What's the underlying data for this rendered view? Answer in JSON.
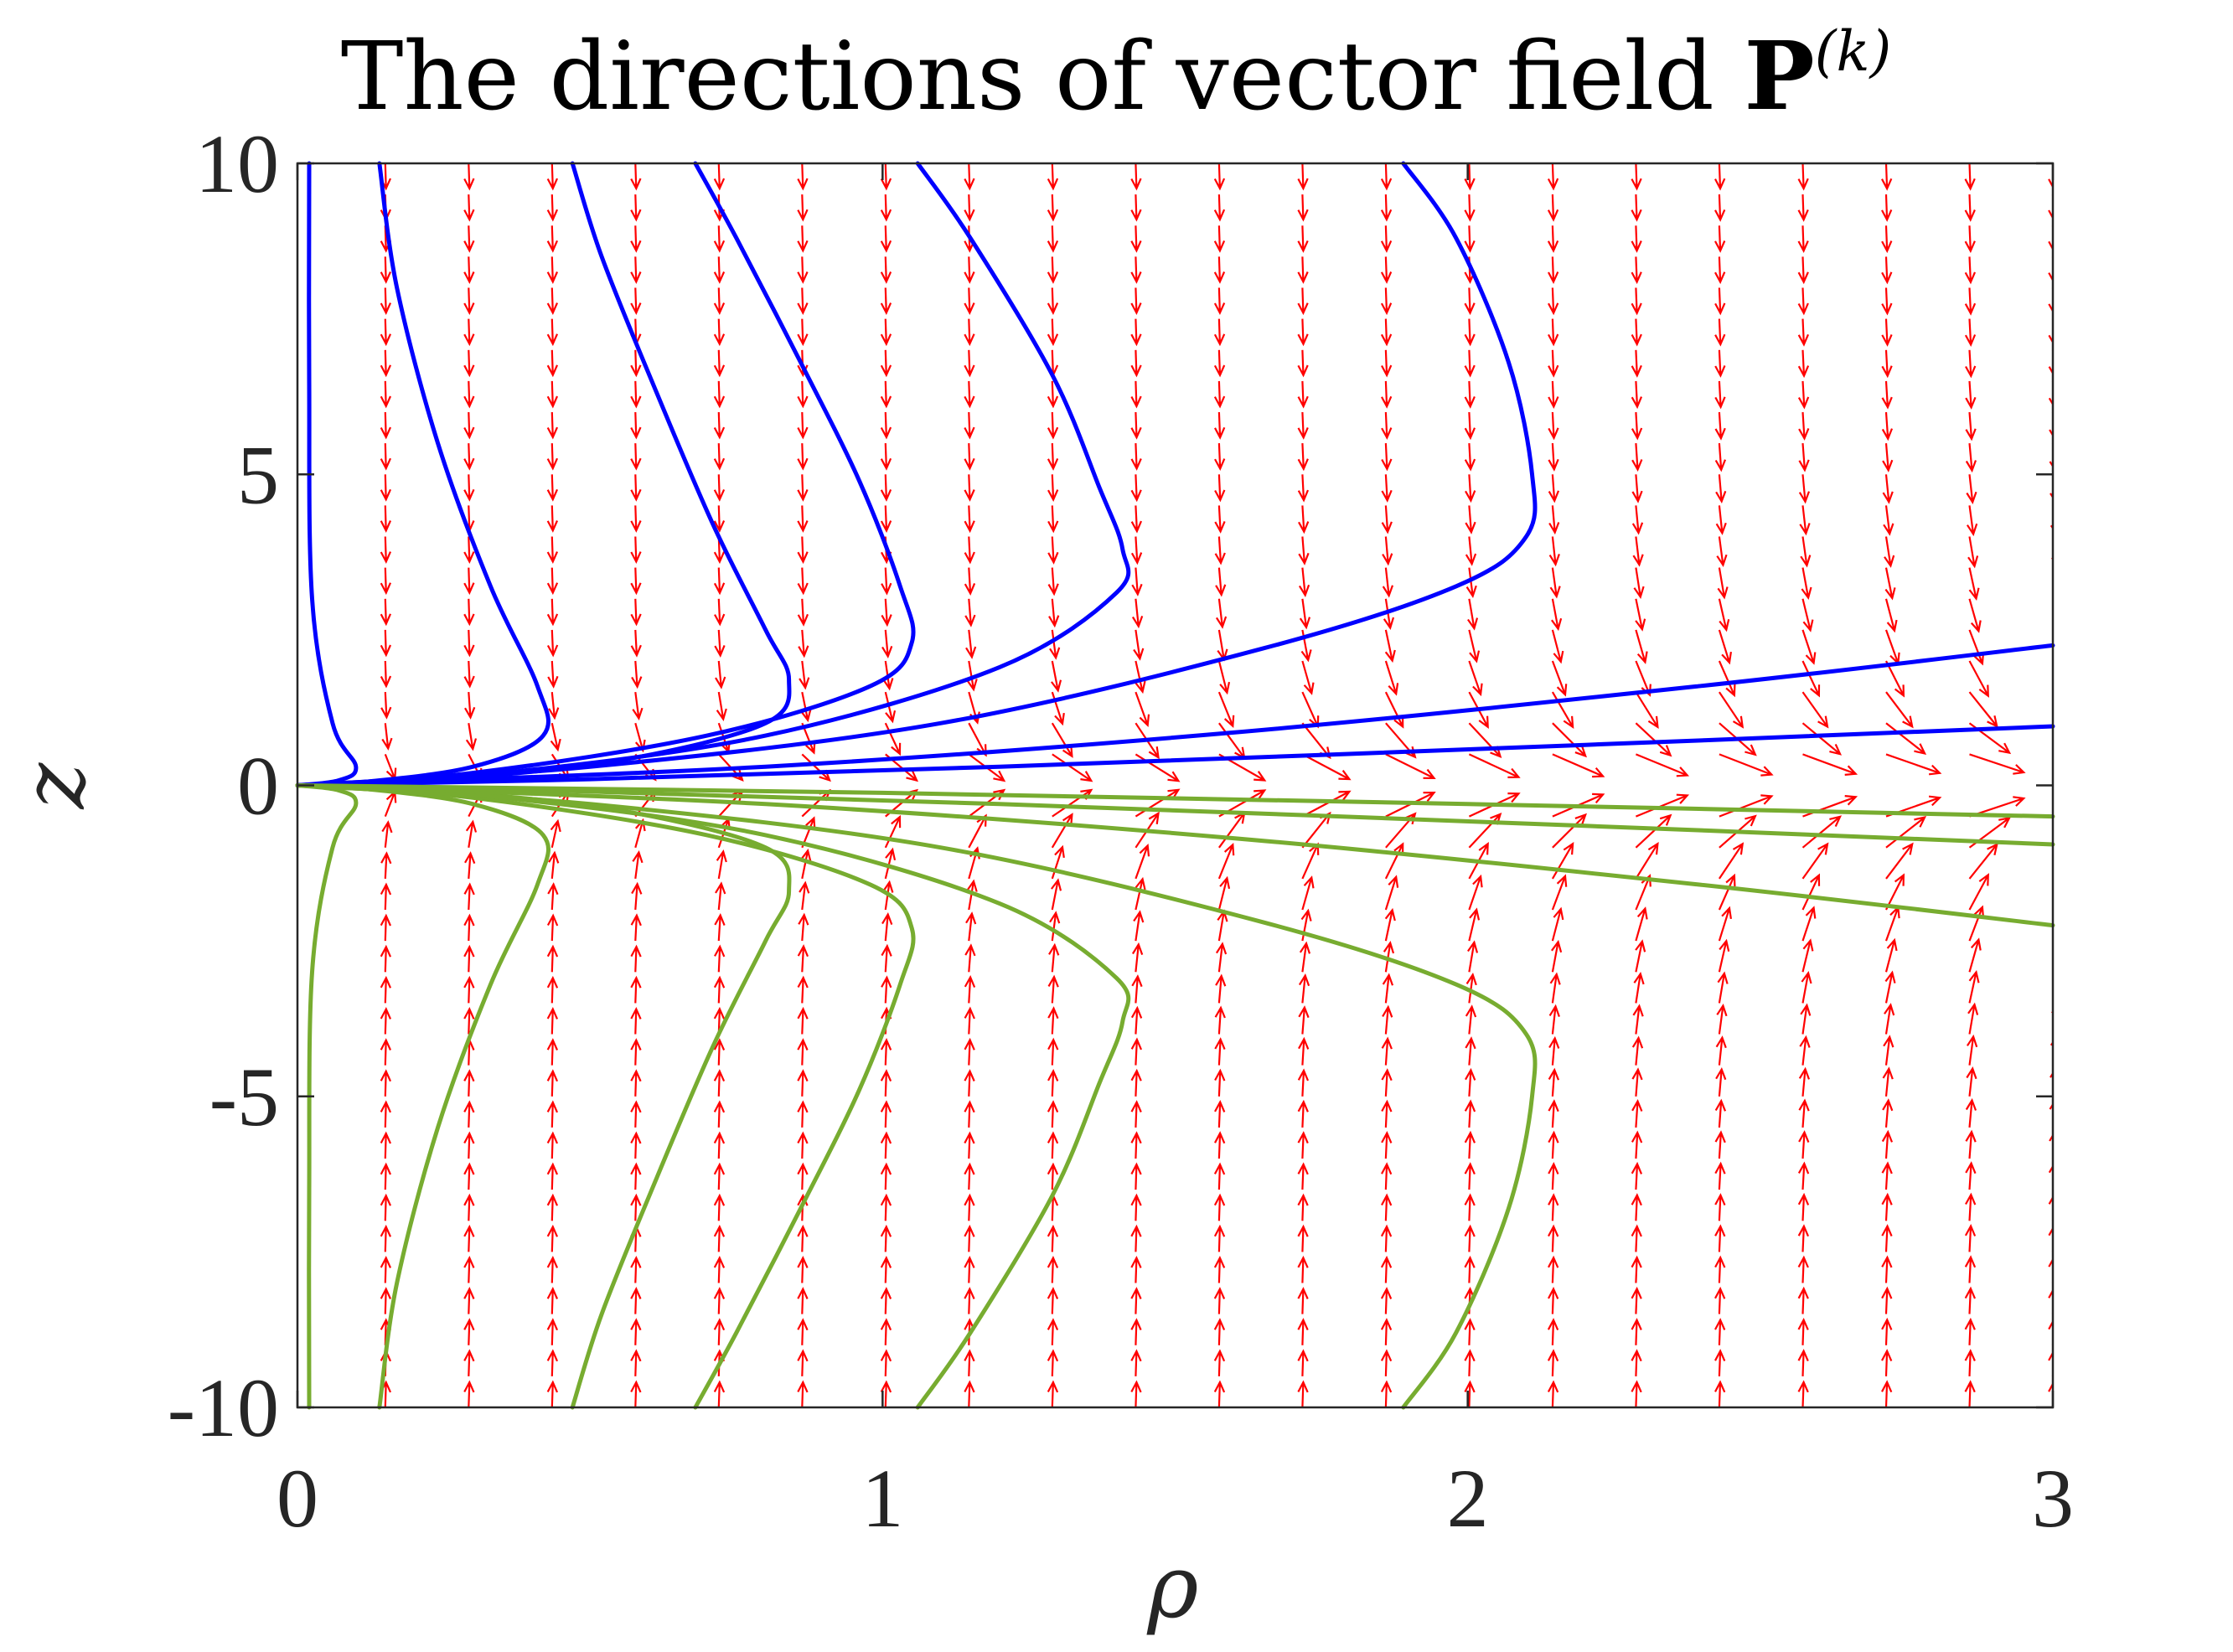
{
  "chart_data": {
    "type": "vector-field",
    "title": "The directions of vector field ",
    "title_symbol": "P",
    "title_superscript": "(k)",
    "xlabel": "ρ",
    "ylabel": "z",
    "xlim": [
      0,
      3
    ],
    "ylim": [
      -10,
      10
    ],
    "xticks": [
      0,
      1,
      2,
      3
    ],
    "xtick_labels": [
      "0",
      "1",
      "2",
      "3"
    ],
    "yticks": [
      10,
      5,
      0,
      -5,
      -10
    ],
    "ytick_labels": [
      "10",
      "5",
      "0",
      "-5",
      "-10"
    ],
    "grid": false,
    "colors": {
      "field_arrows": "#ff0000",
      "upper_trajectories": "#0000ff",
      "lower_trajectories": "#77ac30",
      "axes": "#262626"
    },
    "field": {
      "rho_columns": 21,
      "rho_range": [
        0.15,
        3.0
      ],
      "z_rows": 41,
      "z_range": [
        -10,
        10
      ]
    },
    "series": [
      {
        "group": "upper",
        "color": "#0000ff",
        "curves": [
          [
            [
              0.02,
              10
            ],
            [
              0.02,
              6.5
            ],
            [
              0.025,
              3
            ],
            [
              0.06,
              1.0
            ],
            [
              0.1,
              0.3
            ],
            [
              0.07,
              0.08
            ],
            [
              0,
              0
            ]
          ],
          [
            [
              0.14,
              10
            ],
            [
              0.17,
              8
            ],
            [
              0.24,
              5.5
            ],
            [
              0.33,
              3.2
            ],
            [
              0.41,
              1.6
            ],
            [
              0.42,
              0.8
            ],
            [
              0.3,
              0.3
            ],
            [
              0.12,
              0.06
            ],
            [
              0,
              0
            ]
          ],
          [
            [
              0.47,
              10
            ],
            [
              0.52,
              8.5
            ],
            [
              0.61,
              6.4
            ],
            [
              0.71,
              4.2
            ],
            [
              0.8,
              2.5
            ],
            [
              0.84,
              1.7
            ],
            [
              0.8,
              1.0
            ],
            [
              0.55,
              0.4
            ],
            [
              0.25,
              0.1
            ],
            [
              0,
              0
            ]
          ],
          [
            [
              0.68,
              10
            ],
            [
              0.75,
              8.8
            ],
            [
              0.86,
              6.8
            ],
            [
              0.96,
              4.9
            ],
            [
              1.03,
              3.2
            ],
            [
              1.05,
              2.3
            ],
            [
              0.98,
              1.6
            ],
            [
              0.7,
              0.8
            ],
            [
              0.3,
              0.2
            ],
            [
              0,
              0
            ]
          ],
          [
            [
              1.06,
              10
            ],
            [
              1.15,
              8.8
            ],
            [
              1.29,
              6.6
            ],
            [
              1.37,
              4.8
            ],
            [
              1.41,
              3.8
            ],
            [
              1.4,
              3.1
            ],
            [
              1.2,
              1.9
            ],
            [
              0.8,
              0.8
            ],
            [
              0.35,
              0.2
            ],
            [
              0,
              0
            ]
          ],
          [
            [
              1.89,
              10
            ],
            [
              1.98,
              8.8
            ],
            [
              2.07,
              6.8
            ],
            [
              2.11,
              5.0
            ],
            [
              2.1,
              4.0
            ],
            [
              1.98,
              3.2
            ],
            [
              1.65,
              2.2
            ],
            [
              1.1,
              1.0
            ],
            [
              0.5,
              0.3
            ],
            [
              0,
              0
            ]
          ],
          [
            [
              3.0,
              2.25
            ],
            [
              2.4,
              1.6
            ],
            [
              1.6,
              0.85
            ],
            [
              0.8,
              0.3
            ],
            [
              0,
              0
            ]
          ],
          [
            [
              3.0,
              0.95
            ],
            [
              2.2,
              0.65
            ],
            [
              1.2,
              0.3
            ],
            [
              0.5,
              0.1
            ],
            [
              0,
              0
            ]
          ]
        ]
      },
      {
        "group": "lower",
        "color": "#77ac30",
        "curves": [
          [
            [
              0.02,
              -10
            ],
            [
              0.02,
              -6.5
            ],
            [
              0.025,
              -3
            ],
            [
              0.06,
              -1.0
            ],
            [
              0.1,
              -0.3
            ],
            [
              0.07,
              -0.08
            ],
            [
              0,
              0
            ]
          ],
          [
            [
              0.14,
              -10
            ],
            [
              0.17,
              -8
            ],
            [
              0.24,
              -5.5
            ],
            [
              0.33,
              -3.2
            ],
            [
              0.41,
              -1.6
            ],
            [
              0.42,
              -0.8
            ],
            [
              0.3,
              -0.3
            ],
            [
              0.12,
              -0.06
            ],
            [
              0,
              0
            ]
          ],
          [
            [
              0.47,
              -10
            ],
            [
              0.52,
              -8.5
            ],
            [
              0.61,
              -6.4
            ],
            [
              0.71,
              -4.2
            ],
            [
              0.8,
              -2.5
            ],
            [
              0.84,
              -1.7
            ],
            [
              0.8,
              -1.0
            ],
            [
              0.55,
              -0.4
            ],
            [
              0.25,
              -0.1
            ],
            [
              0,
              0
            ]
          ],
          [
            [
              0.68,
              -10
            ],
            [
              0.75,
              -8.8
            ],
            [
              0.86,
              -6.8
            ],
            [
              0.96,
              -4.9
            ],
            [
              1.03,
              -3.2
            ],
            [
              1.05,
              -2.3
            ],
            [
              0.98,
              -1.6
            ],
            [
              0.7,
              -0.8
            ],
            [
              0.3,
              -0.2
            ],
            [
              0,
              0
            ]
          ],
          [
            [
              1.06,
              -10
            ],
            [
              1.15,
              -8.8
            ],
            [
              1.29,
              -6.6
            ],
            [
              1.37,
              -4.8
            ],
            [
              1.41,
              -3.8
            ],
            [
              1.4,
              -3.1
            ],
            [
              1.2,
              -1.9
            ],
            [
              0.8,
              -0.8
            ],
            [
              0.35,
              -0.2
            ],
            [
              0,
              0
            ]
          ],
          [
            [
              1.89,
              -10
            ],
            [
              1.98,
              -8.8
            ],
            [
              2.07,
              -6.8
            ],
            [
              2.11,
              -5.0
            ],
            [
              2.1,
              -4.0
            ],
            [
              1.98,
              -3.2
            ],
            [
              1.65,
              -2.2
            ],
            [
              1.1,
              -1.0
            ],
            [
              0.5,
              -0.3
            ],
            [
              0,
              0
            ]
          ],
          [
            [
              3.0,
              -2.25
            ],
            [
              2.4,
              -1.6
            ],
            [
              1.6,
              -0.85
            ],
            [
              0.8,
              -0.3
            ],
            [
              0,
              0
            ]
          ],
          [
            [
              3.0,
              -0.95
            ],
            [
              2.2,
              -0.65
            ],
            [
              1.2,
              -0.3
            ],
            [
              0.5,
              -0.1
            ],
            [
              0,
              0
            ]
          ],
          [
            [
              3.0,
              -0.5
            ],
            [
              2.0,
              -0.3
            ],
            [
              1.0,
              -0.12
            ],
            [
              0,
              0
            ]
          ]
        ]
      }
    ]
  }
}
